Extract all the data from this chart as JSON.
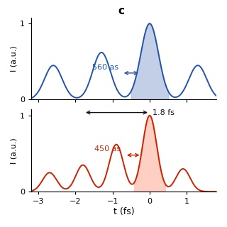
{
  "title_label": "c",
  "top_plot": {
    "color": "#2255aa",
    "fill_color": "#aabbdd",
    "fill_alpha": 0.7,
    "ylabel": "I (a.u.)",
    "annotation": "560 as",
    "annotation_color": "#2255aa",
    "ylim": [
      0,
      1.08
    ],
    "yticks": [
      0,
      1
    ]
  },
  "bottom_plot": {
    "color": "#cc2200",
    "fill_color": "#ffbbaa",
    "fill_alpha": 0.7,
    "ylabel": "I (a.u.)",
    "annotation": "450 as",
    "annotation_color": "#cc2200",
    "annotation2": "1.8 fs",
    "annotation2_color": "#111111",
    "ylim": [
      0,
      1.08
    ],
    "yticks": [
      0,
      1
    ]
  },
  "xlabel": "t (fs)",
  "t_range": [
    -3.2,
    1.8
  ],
  "background_color": "#ffffff"
}
